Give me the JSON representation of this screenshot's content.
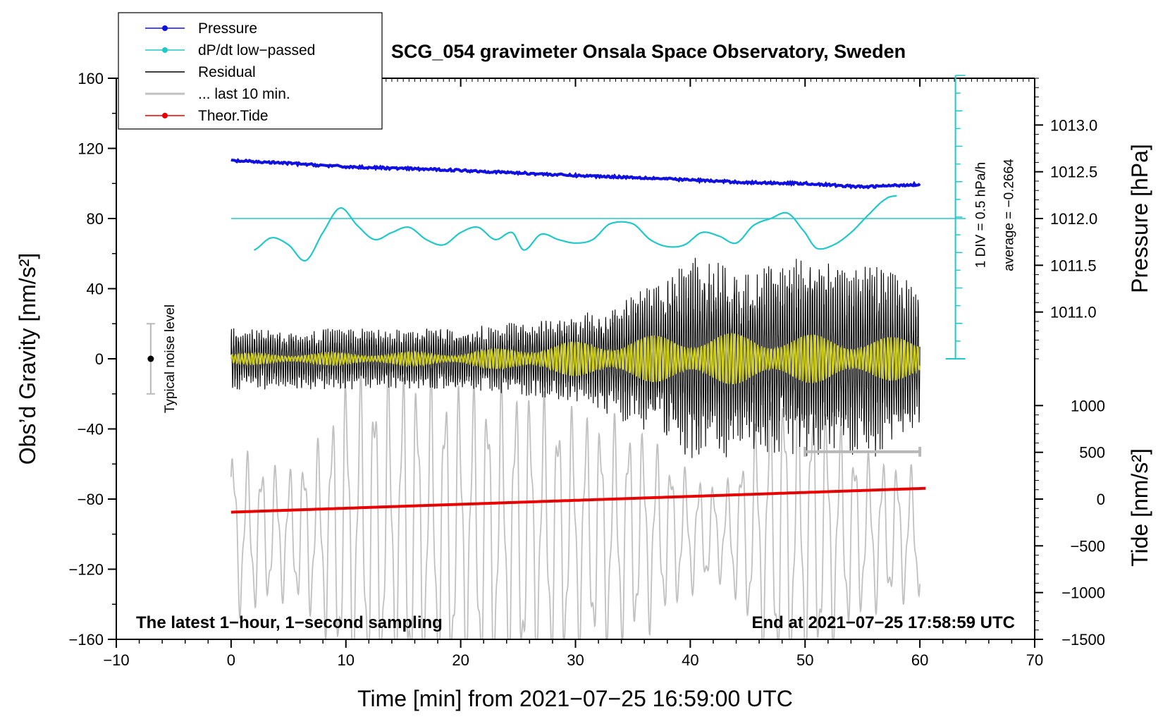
{
  "chart_data": {
    "type": "line",
    "title": "SCG_054 gravimeter Onsala Space Observatory, Sweden",
    "xlabel": "Time [min] from 2021−07−25 16:59:00 UTC",
    "ylabel_left": "Obs’d Gravity [nm/s²]",
    "ylabel_right_top": "Pressure [hPa]",
    "ylabel_right_bottom": "Tide [nm/s²]",
    "xlim": [
      -10,
      70
    ],
    "ylim": [
      -160,
      160
    ],
    "x_ticks": [
      -10,
      0,
      10,
      20,
      30,
      40,
      50,
      60,
      70
    ],
    "x_tick_labels": [
      "−10",
      "0",
      "10",
      "20",
      "30",
      "40",
      "50",
      "60",
      "70"
    ],
    "y_ticks": [
      -160,
      -120,
      -80,
      -40,
      0,
      40,
      80,
      120,
      160
    ],
    "y_tick_labels": [
      "−160",
      "−120",
      "−80",
      "−40",
      "0",
      "40",
      "80",
      "120",
      "160"
    ],
    "pressure_axis": {
      "ticks": [
        1011.0,
        1011.5,
        1012.0,
        1012.5,
        1013.0
      ],
      "labels": [
        "1011.0",
        "1011.5",
        "1012.0",
        "1012.5",
        "1013.0"
      ],
      "gravity_equiv_at_1012": 80,
      "nm_per_hpa": 53.33
    },
    "tide_axis": {
      "ticks": [
        -1500,
        -1000,
        -500,
        0,
        500,
        1000
      ],
      "labels": [
        "−1500",
        "−1000",
        "−500",
        "0",
        "500",
        "1000"
      ],
      "gravity_at_tide_zero": -80,
      "gravity_per_1000": 53.33
    },
    "legend": [
      {
        "label": "Pressure",
        "color": "#1010e0",
        "marker": true
      },
      {
        "label": "dP/dt low−passed",
        "color": "#20c8c8",
        "marker": true
      },
      {
        "label": "Residual",
        "color": "#000000",
        "marker": false
      },
      {
        "label": "... last 10 min.",
        "color": "#c0c0c0",
        "marker": false
      },
      {
        "label": "Theor.Tide",
        "color": "#e80000",
        "marker": true
      }
    ],
    "series": [
      {
        "name": "Pressure",
        "color": "#1010e0",
        "unit": "gravity-equivalent",
        "x": [
          0,
          5,
          10,
          15,
          20,
          25,
          30,
          35,
          40,
          45,
          50,
          55,
          60
        ],
        "values": [
          113,
          111.5,
          109.5,
          108.5,
          107.5,
          106,
          104.5,
          103.5,
          102,
          100.5,
          100,
          98,
          99.5
        ]
      },
      {
        "name": "dP/dt low−passed",
        "color": "#20c8c8",
        "unit": "gravity-equivalent",
        "x": [
          2,
          3.5,
          5,
          6.5,
          8,
          9.5,
          11,
          12.5,
          14,
          15.5,
          17,
          18.5,
          20,
          21.5,
          23,
          24.5,
          25.5,
          27,
          28.5,
          30,
          31.5,
          33,
          35,
          36.5,
          38,
          39.5,
          41,
          42.5,
          44,
          45.5,
          47,
          48.5,
          50,
          51,
          52.5,
          54,
          55.5,
          57,
          58
        ],
        "values": [
          62,
          69,
          65,
          56,
          72,
          86,
          76,
          68,
          72,
          75,
          68,
          65,
          72,
          75,
          68,
          72,
          62,
          71,
          68,
          66,
          68,
          77,
          77,
          68,
          64,
          65,
          72,
          70,
          66,
          76,
          80,
          83,
          72,
          63,
          65,
          72,
          82,
          91,
          93
        ]
      },
      {
        "name": "Residual",
        "color": "#000000",
        "unit": "nm/s²",
        "x_range": [
          0,
          60
        ],
        "envelope_x": [
          0,
          10,
          20,
          30,
          35,
          38,
          40,
          43,
          45,
          50,
          53,
          56,
          60
        ],
        "envelope": [
          18,
          18,
          18,
          25,
          40,
          48,
          60,
          58,
          52,
          60,
          55,
          58,
          42
        ]
      },
      {
        "name": "... last 10 min.",
        "color": "#c0c0c0",
        "unit": "nm/s²",
        "x_range": [
          0,
          60
        ],
        "envelope_x": [
          0,
          5,
          8,
          10,
          15,
          20,
          25,
          30,
          35,
          40,
          43,
          46,
          48,
          50,
          55,
          60
        ],
        "envelope": [
          40,
          30,
          45,
          75,
          78,
          70,
          70,
          58,
          52,
          28,
          22,
          55,
          72,
          70,
          38,
          30
        ],
        "center": -100
      },
      {
        "name": "Theor.Tide",
        "color": "#e80000",
        "unit": "tide nm/s²",
        "x": [
          0,
          60.5
        ],
        "values": [
          -140,
          115
        ]
      },
      {
        "name": "Smoothed residual",
        "color": "#d2d21e",
        "unit": "nm/s²",
        "x_range": [
          0,
          60
        ],
        "envelope_x": [
          0,
          20,
          30,
          40,
          50,
          60
        ],
        "envelope": [
          3,
          4,
          10,
          15,
          14,
          12
        ]
      }
    ],
    "annotations": {
      "noise_label": "Typical noise level",
      "noise_level": 20,
      "scale_label": "1 DIV = 0.5 hPa/h",
      "average_label": "average = −0.2664",
      "left_note": "The latest 1−hour, 1−second sampling",
      "right_note": "End at 2021−07−25 17:58:59 UTC",
      "last10_bar": [
        50,
        60
      ],
      "last10_bar_level": -53
    }
  }
}
